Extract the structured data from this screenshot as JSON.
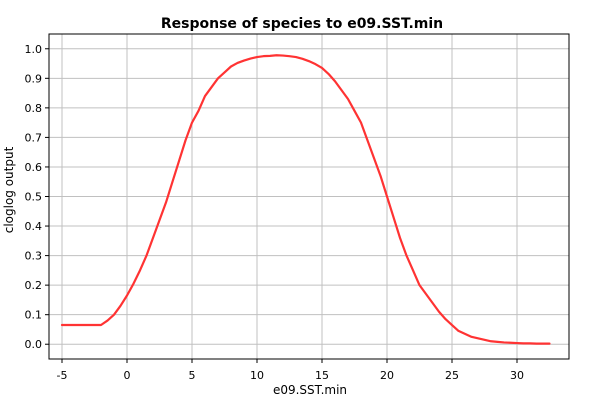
{
  "chart_data": {
    "type": "line",
    "title": "Response of species to e09.SST.min",
    "xlabel": "e09.SST.min",
    "ylabel": "cloglog output",
    "xlim": [
      -6,
      34
    ],
    "ylim": [
      -0.05,
      1.05
    ],
    "xticks": [
      "-5",
      "0",
      "5",
      "10",
      "15",
      "20",
      "25",
      "30"
    ],
    "xtick_values": [
      -5,
      0,
      5,
      10,
      15,
      20,
      25,
      30
    ],
    "yticks": [
      "0.0",
      "0.1",
      "0.2",
      "0.3",
      "0.4",
      "0.5",
      "0.6",
      "0.7",
      "0.8",
      "0.9",
      "1.0"
    ],
    "ytick_values": [
      0,
      0.1,
      0.2,
      0.3,
      0.4,
      0.5,
      0.6,
      0.7,
      0.8,
      0.9,
      1.0
    ],
    "grid": true,
    "line_color": "#ff3333",
    "series": [
      {
        "x": [
          -5,
          -4,
          -3,
          -2,
          -1.5,
          -1,
          -0.5,
          0,
          0.5,
          1,
          1.5,
          2,
          2.5,
          3,
          3.5,
          4,
          4.5,
          5,
          5.5,
          6,
          6.5,
          7,
          7.5,
          8,
          8.5,
          9,
          9.5,
          10,
          10.5,
          11,
          11.5,
          12,
          12.5,
          13,
          13.5,
          14,
          14.5,
          15,
          15.5,
          16,
          16.5,
          17,
          17.5,
          18,
          18.5,
          19,
          19.5,
          20,
          20.5,
          21,
          21.5,
          22,
          22.5,
          23,
          23.5,
          24,
          24.5,
          25,
          25.5,
          26,
          26.5,
          27,
          27.5,
          28,
          28.5,
          29,
          29.5,
          30,
          30.5,
          31,
          31.5,
          32,
          32.5
        ],
        "y": [
          0.065,
          0.065,
          0.065,
          0.065,
          0.08,
          0.1,
          0.13,
          0.165,
          0.205,
          0.25,
          0.3,
          0.36,
          0.42,
          0.48,
          0.55,
          0.62,
          0.69,
          0.75,
          0.79,
          0.84,
          0.87,
          0.9,
          0.92,
          0.94,
          0.952,
          0.96,
          0.967,
          0.972,
          0.975,
          0.976,
          0.978,
          0.977,
          0.975,
          0.972,
          0.966,
          0.958,
          0.948,
          0.935,
          0.915,
          0.89,
          0.86,
          0.83,
          0.79,
          0.75,
          0.69,
          0.63,
          0.57,
          0.5,
          0.43,
          0.36,
          0.3,
          0.25,
          0.2,
          0.17,
          0.14,
          0.11,
          0.085,
          0.065,
          0.045,
          0.035,
          0.025,
          0.02,
          0.015,
          0.01,
          0.008,
          0.006,
          0.005,
          0.004,
          0.003,
          0.003,
          0.002,
          0.002,
          0.002
        ]
      }
    ]
  }
}
